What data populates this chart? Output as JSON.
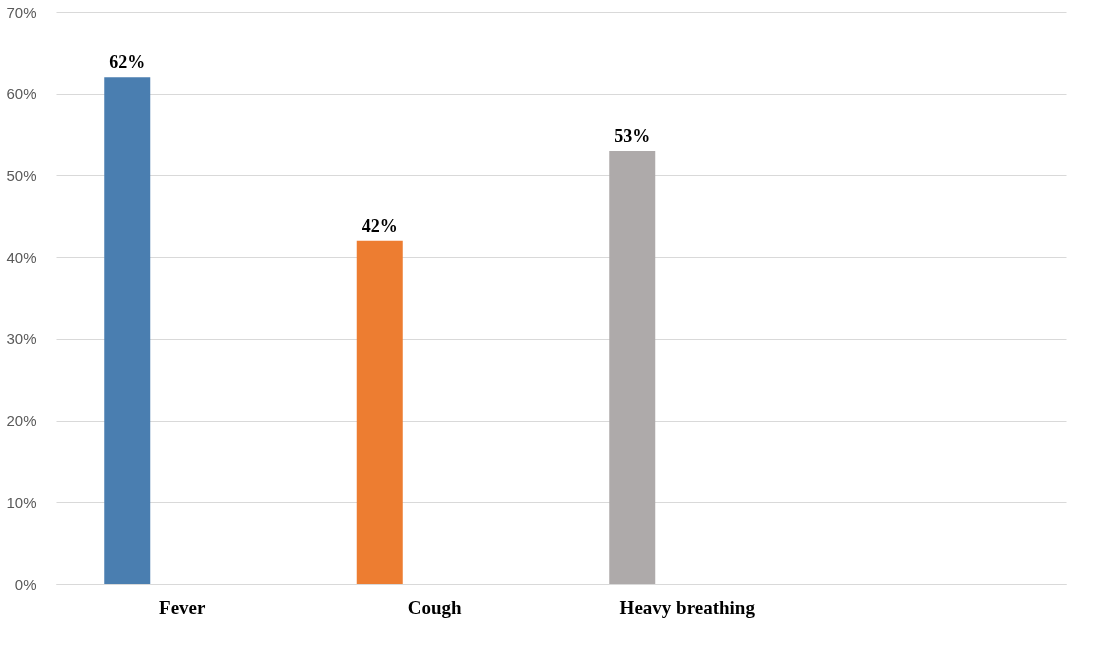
{
  "chart_data": {
    "type": "bar",
    "categories": [
      "Fever",
      "Cough",
      "Heavy breathing",
      null
    ],
    "values": [
      62,
      42,
      53,
      null
    ],
    "colors": [
      "#4a7eb0",
      "#ed7d31",
      "#aeaaaa",
      null
    ],
    "value_labels": [
      "62%",
      "42%",
      "53%",
      null
    ],
    "ylim": [
      0,
      70
    ],
    "yticks": [
      {
        "value": 0,
        "label": "0%"
      },
      {
        "value": 10,
        "label": "10%"
      },
      {
        "value": 20,
        "label": "20%"
      },
      {
        "value": 30,
        "label": "30%"
      },
      {
        "value": 40,
        "label": "40%"
      },
      {
        "value": 50,
        "label": "50%"
      },
      {
        "value": 60,
        "label": "60%"
      },
      {
        "value": 70,
        "label": "70%"
      }
    ],
    "grid": "y",
    "legend": false
  }
}
